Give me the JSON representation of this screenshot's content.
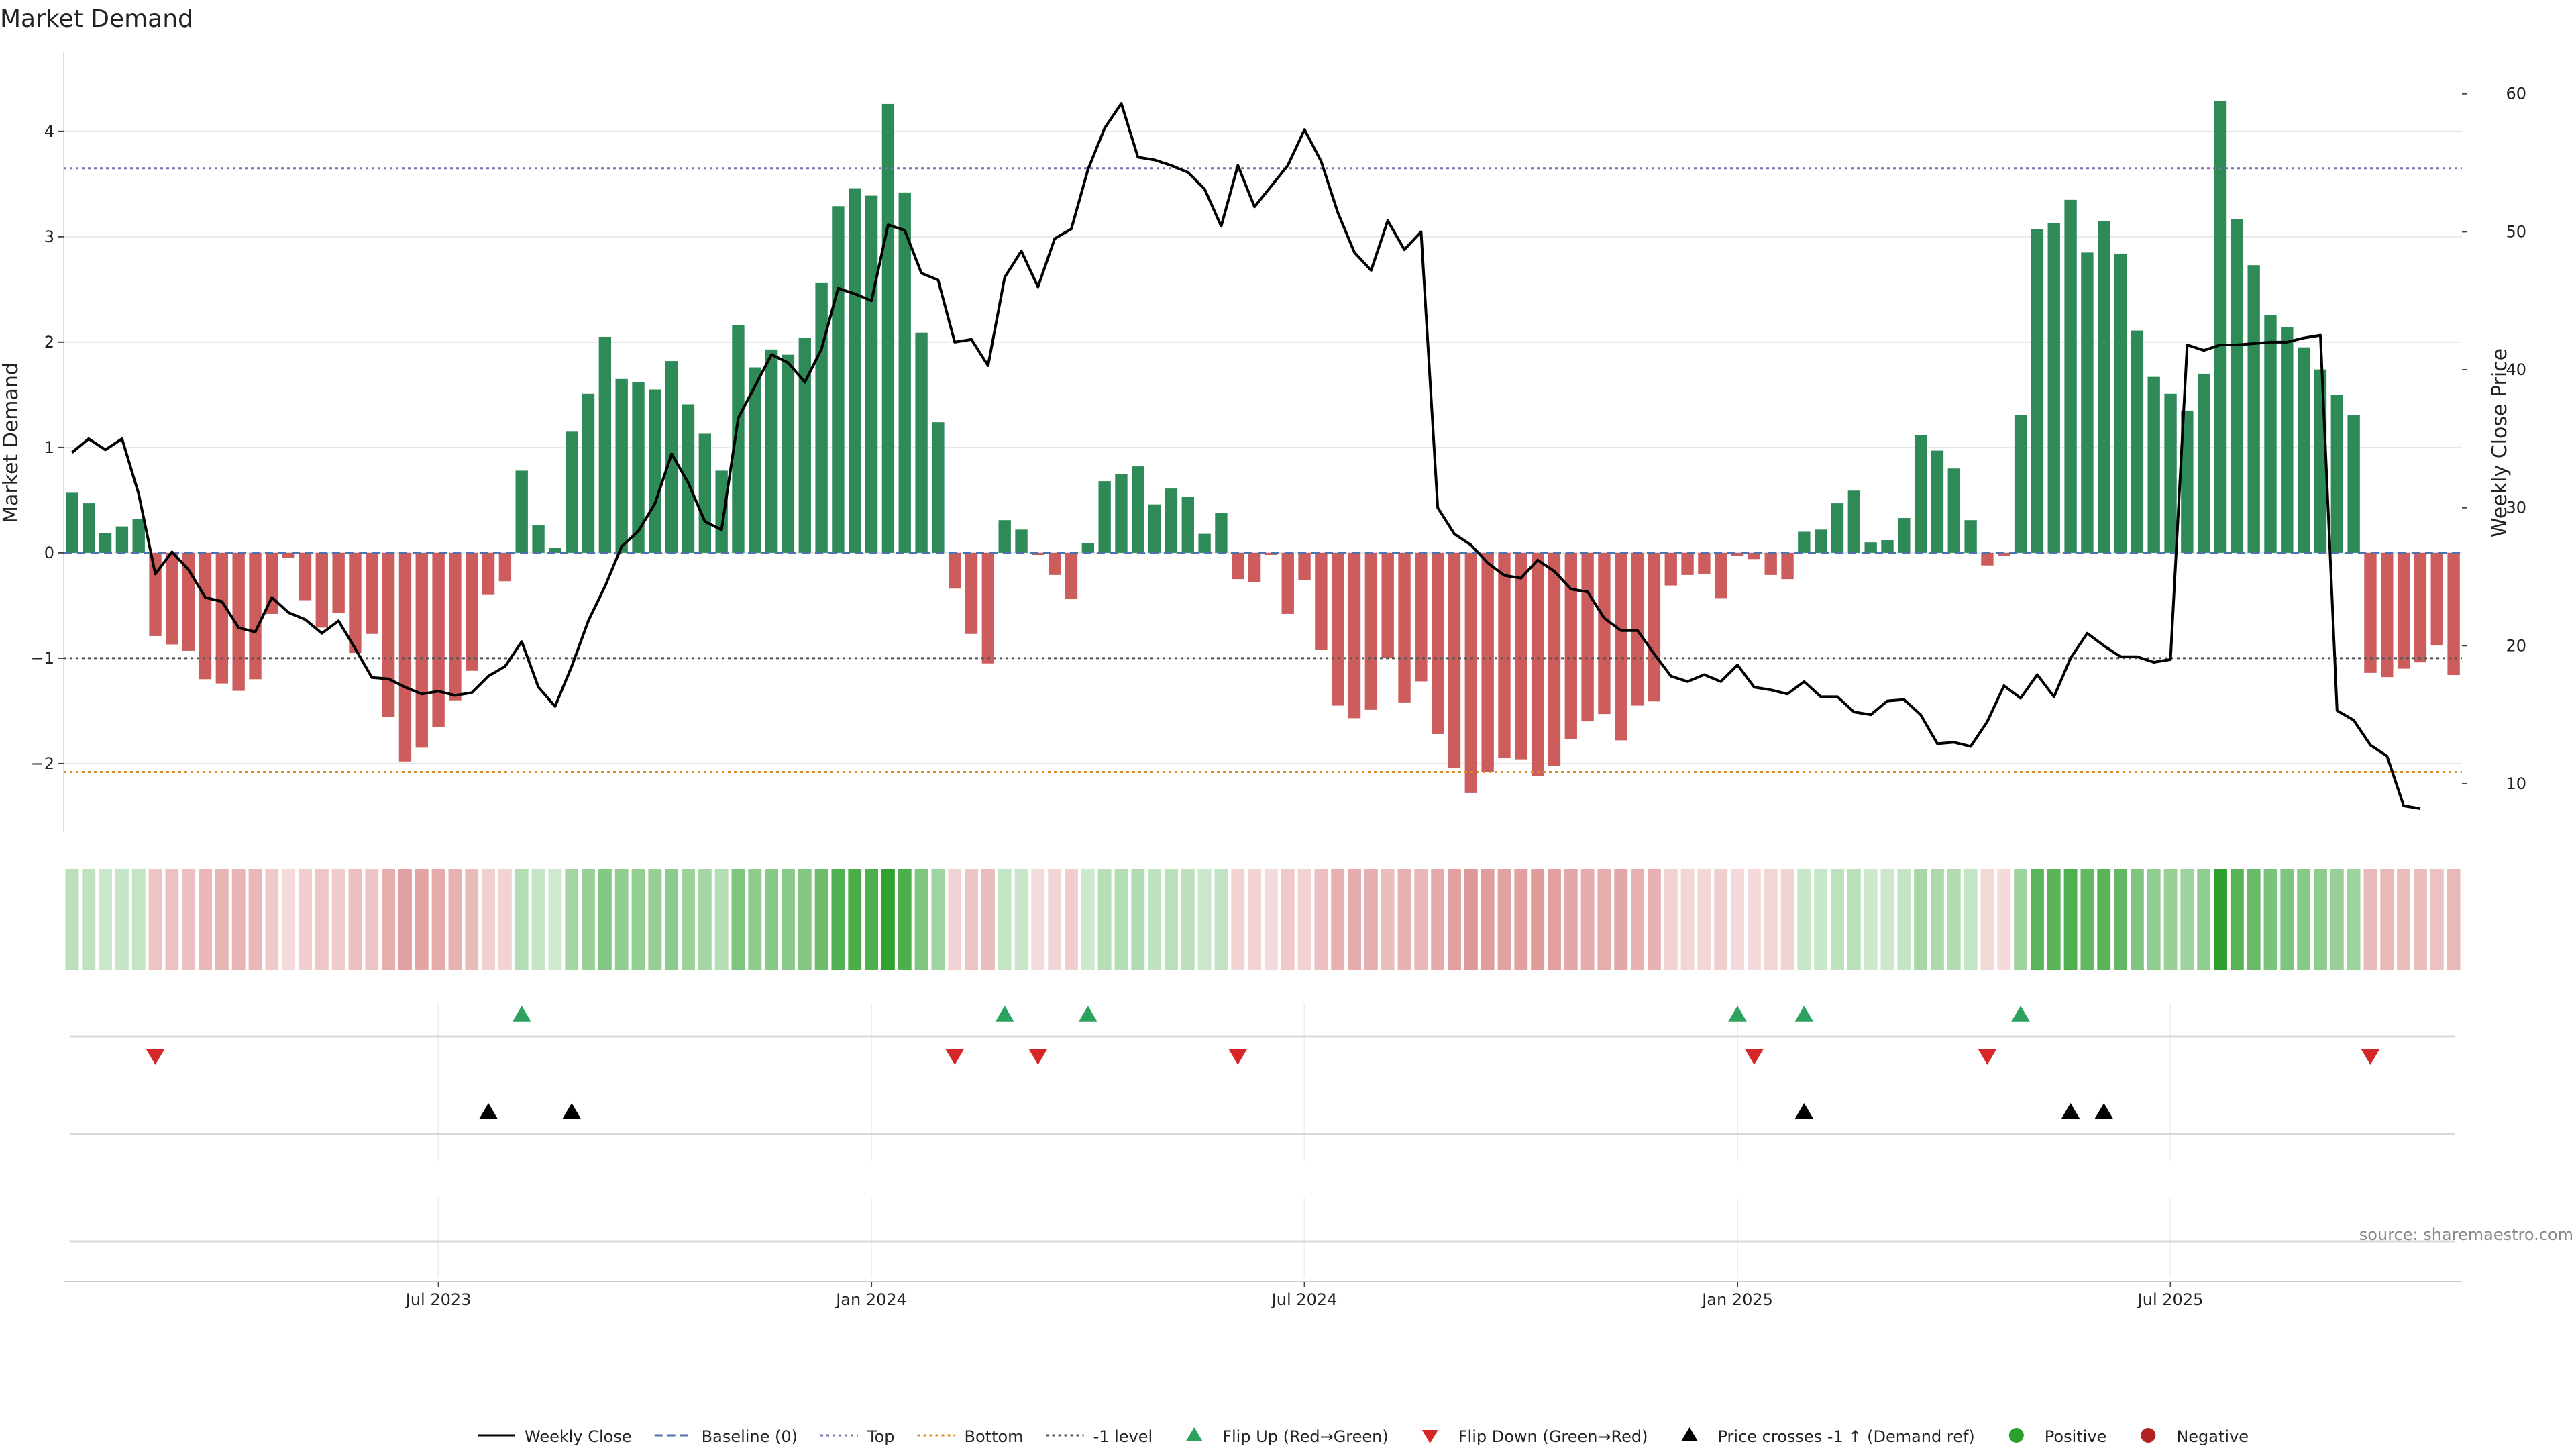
{
  "chart_data": {
    "type": "bar",
    "title": "Market Demand",
    "ylabel": "Market Demand",
    "y2label": "Weekly Close Price",
    "ylim": [
      -2.65,
      4.75
    ],
    "y2lim": [
      6.5,
      63
    ],
    "yticks": [
      4,
      3,
      2,
      1,
      0,
      -1,
      -2
    ],
    "yticks_display": [
      "4",
      "3",
      "2",
      "1",
      "0",
      "−1",
      "−2"
    ],
    "y2ticks": [
      60,
      50,
      40,
      30,
      20,
      10
    ],
    "y2ticks_display": [
      "60",
      "50",
      "40",
      "30",
      "20",
      "10"
    ],
    "reference_lines": {
      "top": 3.65,
      "minus_one": -1.0,
      "bottom": -2.08,
      "baseline": 0
    },
    "x_tick_labels": [
      {
        "index": 22,
        "label": "Jul 2023"
      },
      {
        "index": 48,
        "label": "Jan 2024"
      },
      {
        "index": 74,
        "label": "Jul 2024"
      },
      {
        "index": 100,
        "label": "Jan 2025"
      },
      {
        "index": 126,
        "label": "Jul 2025"
      }
    ],
    "demand": [
      0.57,
      0.47,
      0.19,
      0.25,
      0.32,
      -0.79,
      -0.87,
      -0.93,
      -1.2,
      -1.24,
      -1.31,
      -1.2,
      -0.58,
      -0.05,
      -0.45,
      -0.71,
      -0.57,
      -0.95,
      -0.77,
      -1.56,
      -1.98,
      -1.85,
      -1.65,
      -1.4,
      -1.12,
      -0.4,
      -0.27,
      0.78,
      0.26,
      0.05,
      1.15,
      1.51,
      2.05,
      1.65,
      1.62,
      1.55,
      1.82,
      1.41,
      1.13,
      0.78,
      2.16,
      1.76,
      1.93,
      1.88,
      2.04,
      2.56,
      3.29,
      3.46,
      3.39,
      4.26,
      3.42,
      2.09,
      1.24,
      -0.34,
      -0.77,
      -1.05,
      0.31,
      0.22,
      -0.02,
      -0.21,
      -0.44,
      0.09,
      0.68,
      0.75,
      0.82,
      0.46,
      0.61,
      0.53,
      0.18,
      0.38,
      -0.25,
      -0.28,
      -0.02,
      -0.58,
      -0.26,
      -0.92,
      -1.45,
      -1.57,
      -1.49,
      -1.0,
      -1.42,
      -1.22,
      -1.72,
      -2.04,
      -2.28,
      -2.08,
      -1.95,
      -1.96,
      -2.12,
      -2.02,
      -1.77,
      -1.6,
      -1.53,
      -1.78,
      -1.45,
      -1.41,
      -0.31,
      -0.21,
      -0.2,
      -0.43,
      -0.03,
      -0.06,
      -0.21,
      -0.25,
      0.2,
      0.22,
      0.47,
      0.59,
      0.1,
      0.12,
      0.33,
      1.12,
      0.97,
      0.8,
      0.31,
      -0.12,
      -0.03,
      1.31,
      3.07,
      3.13,
      3.35,
      2.85,
      3.15,
      2.84,
      2.11,
      1.67,
      1.51,
      1.35,
      1.7,
      4.29,
      3.17,
      2.73,
      2.26,
      2.14,
      1.95,
      1.74,
      1.5,
      1.31,
      -1.14,
      -1.18,
      -1.1,
      -1.04,
      -0.88,
      -1.16
    ],
    "weekly_close": [
      34,
      35,
      34.2,
      35,
      31,
      25.2,
      26.8,
      25.5,
      23.5,
      23.2,
      21.3,
      21,
      23.5,
      22.4,
      21.9,
      20.9,
      21.8,
      19.8,
      17.7,
      17.6,
      17,
      16.5,
      16.7,
      16.4,
      16.6,
      17.8,
      18.5,
      20.3,
      17,
      15.6,
      18.5,
      21.8,
      24.3,
      27.2,
      28.3,
      30.3,
      33.9,
      31.8,
      29,
      28.4,
      36.5,
      38.8,
      41.1,
      40.5,
      39.1,
      41.5,
      45.9,
      45.5,
      45,
      50.5,
      50.1,
      47,
      46.5,
      42,
      42.2,
      40.3,
      46.7,
      48.6,
      46,
      49.5,
      50.2,
      54.5,
      57.5,
      59.3,
      55.4,
      55.2,
      54.8,
      54.3,
      53.1,
      50.4,
      54.8,
      51.8,
      53.3,
      54.8,
      57.4,
      55.1,
      51.4,
      48.5,
      47.2,
      50.8,
      48.7,
      50,
      30,
      28.1,
      27.3,
      26,
      25.1,
      24.9,
      26.2,
      25.4,
      24.1,
      23.9,
      22,
      21.1,
      21.1,
      19.4,
      17.8,
      17.4,
      17.9,
      17.4,
      18.6,
      17,
      16.8,
      16.5,
      17.4,
      16.3,
      16.3,
      15.2,
      15,
      16,
      16.1,
      15,
      12.9,
      13,
      12.7,
      14.5,
      17.1,
      16.2,
      17.9,
      16.3,
      19.1,
      20.9,
      20,
      19.2,
      19.2,
      18.8,
      19,
      41.8,
      41.4,
      41.8,
      41.8,
      41.9,
      42,
      42,
      42.3,
      42.5,
      15.3,
      14.6,
      12.8,
      12,
      8.4,
      8.2
    ],
    "flip_up_indices": [
      27,
      56,
      61,
      100,
      104,
      117
    ],
    "flip_down_indices": [
      5,
      53,
      58,
      70,
      101,
      115,
      138
    ],
    "price_cross_indices": [
      25,
      30,
      104,
      120,
      122
    ],
    "legend": [
      {
        "key": "weekly_close",
        "label": "Weekly Close",
        "color": "#000000",
        "symbol": "solid-line"
      },
      {
        "key": "baseline",
        "label": "Baseline (0)",
        "color": "#4c72b0",
        "symbol": "dashed-line"
      },
      {
        "key": "top",
        "label": "Top",
        "color": "#7a6fb3",
        "symbol": "dotted-line"
      },
      {
        "key": "bottom",
        "label": "Bottom",
        "color": "#dd8b27",
        "symbol": "dotted-line"
      },
      {
        "key": "minus_one",
        "label": "-1 level",
        "color": "#555555",
        "symbol": "dotted-line"
      },
      {
        "key": "flip_up",
        "label": "Flip Up (Red→Green)",
        "color": "#2ca25f",
        "symbol": "triangle-up"
      },
      {
        "key": "flip_down",
        "label": "Flip Down (Green→Red)",
        "color": "#d62728",
        "symbol": "triangle-down"
      },
      {
        "key": "price_cross",
        "label": "Price crosses -1 ↑ (Demand ref)",
        "color": "#000000",
        "symbol": "triangle-up"
      },
      {
        "key": "positive",
        "label": "Positive",
        "color": "#2ca02c",
        "symbol": "circle"
      },
      {
        "key": "negative",
        "label": "Negative",
        "color": "#b22222",
        "symbol": "circle"
      }
    ],
    "source": "source: sharemaestro.com"
  },
  "colors": {
    "bar_positive": "#2e8b57",
    "bar_negative": "#cd5c5c",
    "heat_positive": "#2ca02c",
    "heat_negative": "#cd5c5c",
    "price_line": "#000000",
    "grid": "#e8e8e8"
  }
}
